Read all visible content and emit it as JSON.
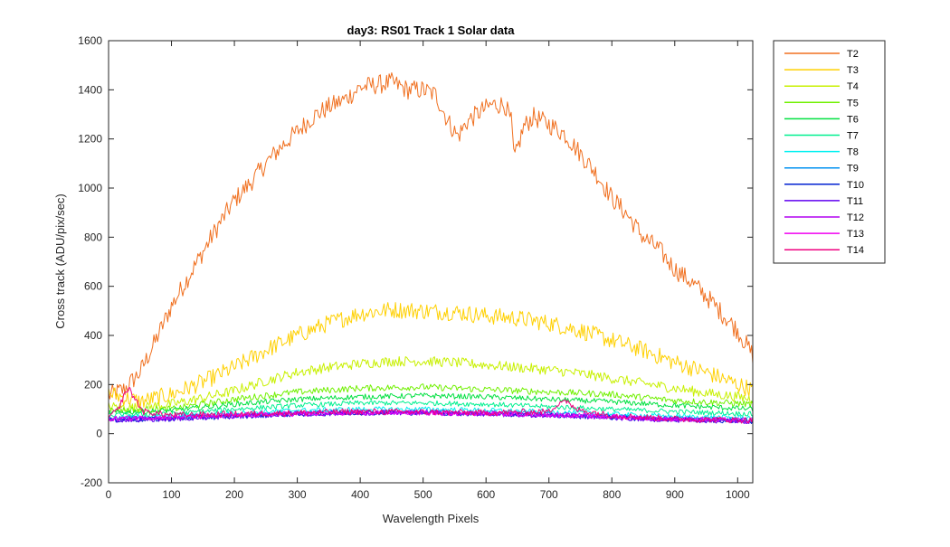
{
  "chart_data": {
    "type": "line",
    "title": "day3: RS01  Track 1 Solar data",
    "xlabel": "Wavelength Pixels",
    "ylabel": "Cross track (ADU/pix/sec)",
    "xlim": [
      0,
      1024
    ],
    "ylim": [
      -200,
      1600
    ],
    "xticks": [
      0,
      100,
      200,
      300,
      400,
      500,
      600,
      700,
      800,
      900,
      1000
    ],
    "yticks": [
      -200,
      0,
      200,
      400,
      600,
      800,
      1000,
      1200,
      1400,
      1600
    ],
    "grid": false,
    "legend_position": "outside-top-right",
    "series": [
      {
        "name": "T2",
        "color": "#f07020",
        "x": [
          0,
          25,
          50,
          75,
          100,
          125,
          150,
          175,
          200,
          225,
          250,
          275,
          300,
          325,
          350,
          375,
          400,
          425,
          450,
          475,
          500,
          520,
          540,
          555,
          570,
          590,
          610,
          630,
          640,
          645,
          650,
          660,
          675,
          700,
          725,
          750,
          775,
          800,
          825,
          850,
          875,
          900,
          925,
          950,
          975,
          1000,
          1024
        ],
        "y": [
          155,
          180,
          250,
          380,
          520,
          630,
          740,
          850,
          950,
          1020,
          1100,
          1170,
          1230,
          1290,
          1330,
          1360,
          1410,
          1420,
          1430,
          1400,
          1400,
          1380,
          1270,
          1210,
          1270,
          1310,
          1340,
          1340,
          1270,
          1110,
          1160,
          1250,
          1290,
          1260,
          1220,
          1140,
          1060,
          960,
          890,
          800,
          750,
          670,
          620,
          560,
          490,
          420,
          320
        ]
      },
      {
        "name": "T3",
        "color": "#ffd000",
        "x": [
          0,
          50,
          100,
          150,
          200,
          250,
          300,
          350,
          400,
          450,
          500,
          550,
          600,
          650,
          700,
          750,
          800,
          850,
          900,
          950,
          1000,
          1024
        ],
        "y": [
          165,
          130,
          160,
          210,
          270,
          340,
          400,
          450,
          490,
          505,
          500,
          495,
          480,
          470,
          450,
          420,
          380,
          340,
          290,
          250,
          200,
          180
        ]
      },
      {
        "name": "T4",
        "color": "#c8f000",
        "x": [
          0,
          50,
          100,
          150,
          200,
          250,
          300,
          350,
          400,
          450,
          500,
          550,
          600,
          650,
          700,
          750,
          800,
          850,
          900,
          950,
          1000,
          1024
        ],
        "y": [
          110,
          105,
          120,
          145,
          175,
          215,
          250,
          270,
          285,
          295,
          295,
          290,
          280,
          270,
          260,
          245,
          225,
          205,
          185,
          165,
          150,
          140
        ]
      },
      {
        "name": "T5",
        "color": "#70f000",
        "x": [
          0,
          100,
          200,
          300,
          400,
          500,
          600,
          700,
          800,
          900,
          1024
        ],
        "y": [
          95,
          100,
          140,
          170,
          185,
          190,
          180,
          170,
          160,
          135,
          120
        ]
      },
      {
        "name": "T6",
        "color": "#00e040",
        "x": [
          0,
          100,
          200,
          300,
          400,
          500,
          600,
          700,
          800,
          900,
          1024
        ],
        "y": [
          85,
          95,
          120,
          140,
          150,
          155,
          150,
          140,
          130,
          115,
          100
        ]
      },
      {
        "name": "T7",
        "color": "#00f090",
        "x": [
          0,
          100,
          200,
          300,
          400,
          500,
          600,
          700,
          800,
          900,
          1024
        ],
        "y": [
          75,
          80,
          100,
          115,
          125,
          125,
          120,
          110,
          100,
          90,
          80
        ]
      },
      {
        "name": "T8",
        "color": "#00f0f0",
        "x": [
          0,
          100,
          200,
          300,
          400,
          500,
          600,
          700,
          800,
          900,
          1024
        ],
        "y": [
          65,
          70,
          85,
          95,
          100,
          100,
          95,
          90,
          80,
          70,
          65
        ]
      },
      {
        "name": "T9",
        "color": "#0090f0",
        "x": [
          0,
          100,
          200,
          300,
          400,
          500,
          600,
          700,
          800,
          900,
          1024
        ],
        "y": [
          60,
          65,
          75,
          85,
          90,
          90,
          85,
          80,
          70,
          62,
          55
        ]
      },
      {
        "name": "T10",
        "color": "#0020d0",
        "x": [
          0,
          100,
          200,
          300,
          400,
          500,
          600,
          700,
          800,
          900,
          1024
        ],
        "y": [
          55,
          60,
          70,
          80,
          85,
          85,
          80,
          75,
          65,
          58,
          50
        ]
      },
      {
        "name": "T11",
        "color": "#6000f0",
        "x": [
          0,
          100,
          200,
          300,
          400,
          500,
          600,
          700,
          800,
          900,
          1024
        ],
        "y": [
          55,
          60,
          70,
          80,
          85,
          85,
          80,
          75,
          65,
          55,
          50
        ]
      },
      {
        "name": "T12",
        "color": "#b000f0",
        "x": [
          0,
          100,
          200,
          300,
          400,
          500,
          600,
          700,
          800,
          900,
          1024
        ],
        "y": [
          60,
          65,
          72,
          80,
          85,
          85,
          82,
          76,
          68,
          58,
          52
        ]
      },
      {
        "name": "T13",
        "color": "#f000f0",
        "x": [
          0,
          100,
          200,
          300,
          400,
          500,
          600,
          700,
          800,
          900,
          1024
        ],
        "y": [
          62,
          68,
          75,
          82,
          85,
          85,
          82,
          78,
          70,
          60,
          55
        ]
      },
      {
        "name": "T14",
        "color": "#f00080",
        "x": [
          0,
          15,
          25,
          32,
          40,
          55,
          100,
          200,
          300,
          400,
          500,
          600,
          700,
          715,
          725,
          740,
          800,
          900,
          1024
        ],
        "y": [
          70,
          95,
          160,
          185,
          150,
          90,
          75,
          80,
          85,
          90,
          88,
          85,
          90,
          125,
          140,
          100,
          75,
          60,
          55
        ]
      }
    ]
  }
}
